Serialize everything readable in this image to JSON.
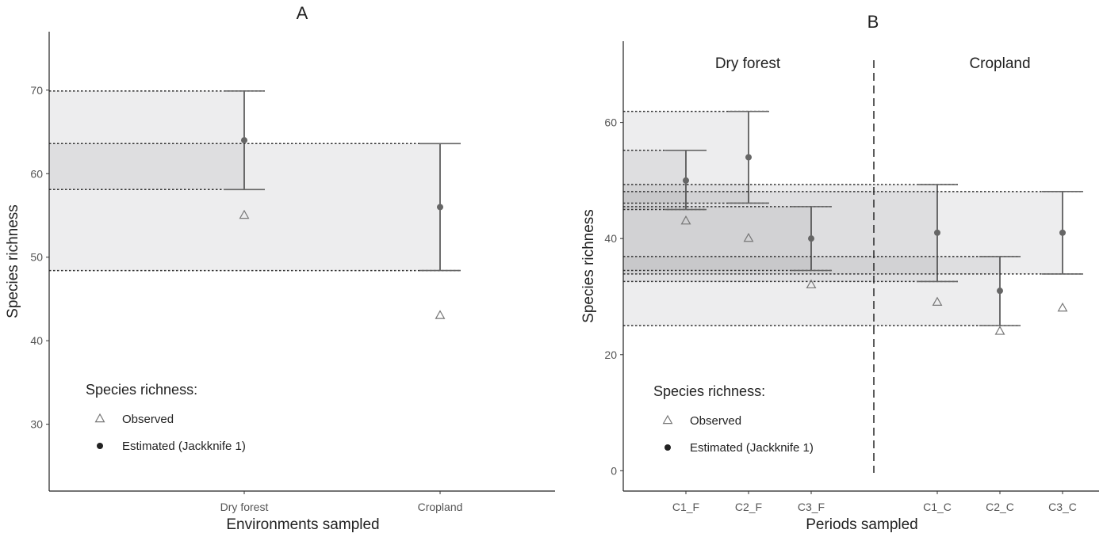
{
  "chart_data": [
    {
      "panel": "A",
      "type": "scatter",
      "title": "A",
      "xlabel": "Environments sampled",
      "ylabel": "Species richness",
      "categories": [
        "Dry forest",
        "Cropland"
      ],
      "ylim": [
        22,
        77
      ],
      "yticks": [
        30,
        40,
        50,
        60,
        70
      ],
      "grid": false,
      "series": [
        {
          "name": "Observed",
          "marker": "triangle-open",
          "values": [
            55,
            43
          ]
        },
        {
          "name": "Estimated (Jackknife 1)",
          "marker": "circle-filled",
          "values": [
            64,
            56
          ]
        }
      ],
      "ci": [
        {
          "category": "Dry forest",
          "low": 58.1,
          "high": 69.9
        },
        {
          "category": "Cropland",
          "low": 48.4,
          "high": 63.6
        }
      ],
      "legend": {
        "title": "Species richness:",
        "position": "bottom-left"
      }
    },
    {
      "panel": "B",
      "type": "scatter",
      "title": "B",
      "xlabel": "Periods sampled",
      "ylabel": "Species richness",
      "categories": [
        "C1_F",
        "C2_F",
        "C3_F",
        "C1_C",
        "C2_C",
        "C3_C"
      ],
      "ylim": [
        -3.5,
        74
      ],
      "yticks": [
        0,
        20,
        40,
        60
      ],
      "grid": false,
      "groups": [
        {
          "label": "Dry forest",
          "categories": [
            "C1_F",
            "C2_F",
            "C3_F"
          ]
        },
        {
          "label": "Cropland",
          "categories": [
            "C1_C",
            "C2_C",
            "C3_C"
          ]
        }
      ],
      "series": [
        {
          "name": "Observed",
          "marker": "triangle-open",
          "values": [
            43,
            40,
            32,
            29,
            24,
            28
          ]
        },
        {
          "name": "Estimated (Jackknife 1)",
          "marker": "circle-filled",
          "values": [
            50,
            54,
            40,
            41,
            31,
            41
          ]
        }
      ],
      "ci": [
        {
          "category": "C1_F",
          "low": 45,
          "high": 55.2
        },
        {
          "category": "C2_F",
          "low": 46.1,
          "high": 61.9
        },
        {
          "category": "C3_F",
          "low": 34.5,
          "high": 45.5
        },
        {
          "category": "C1_C",
          "low": 32.6,
          "high": 49.3
        },
        {
          "category": "C2_C",
          "low": 25,
          "high": 36.9
        },
        {
          "category": "C3_C",
          "low": 33.9,
          "high": 48.1
        }
      ],
      "legend": {
        "title": "Species richness:",
        "position": "bottom-left"
      }
    }
  ]
}
